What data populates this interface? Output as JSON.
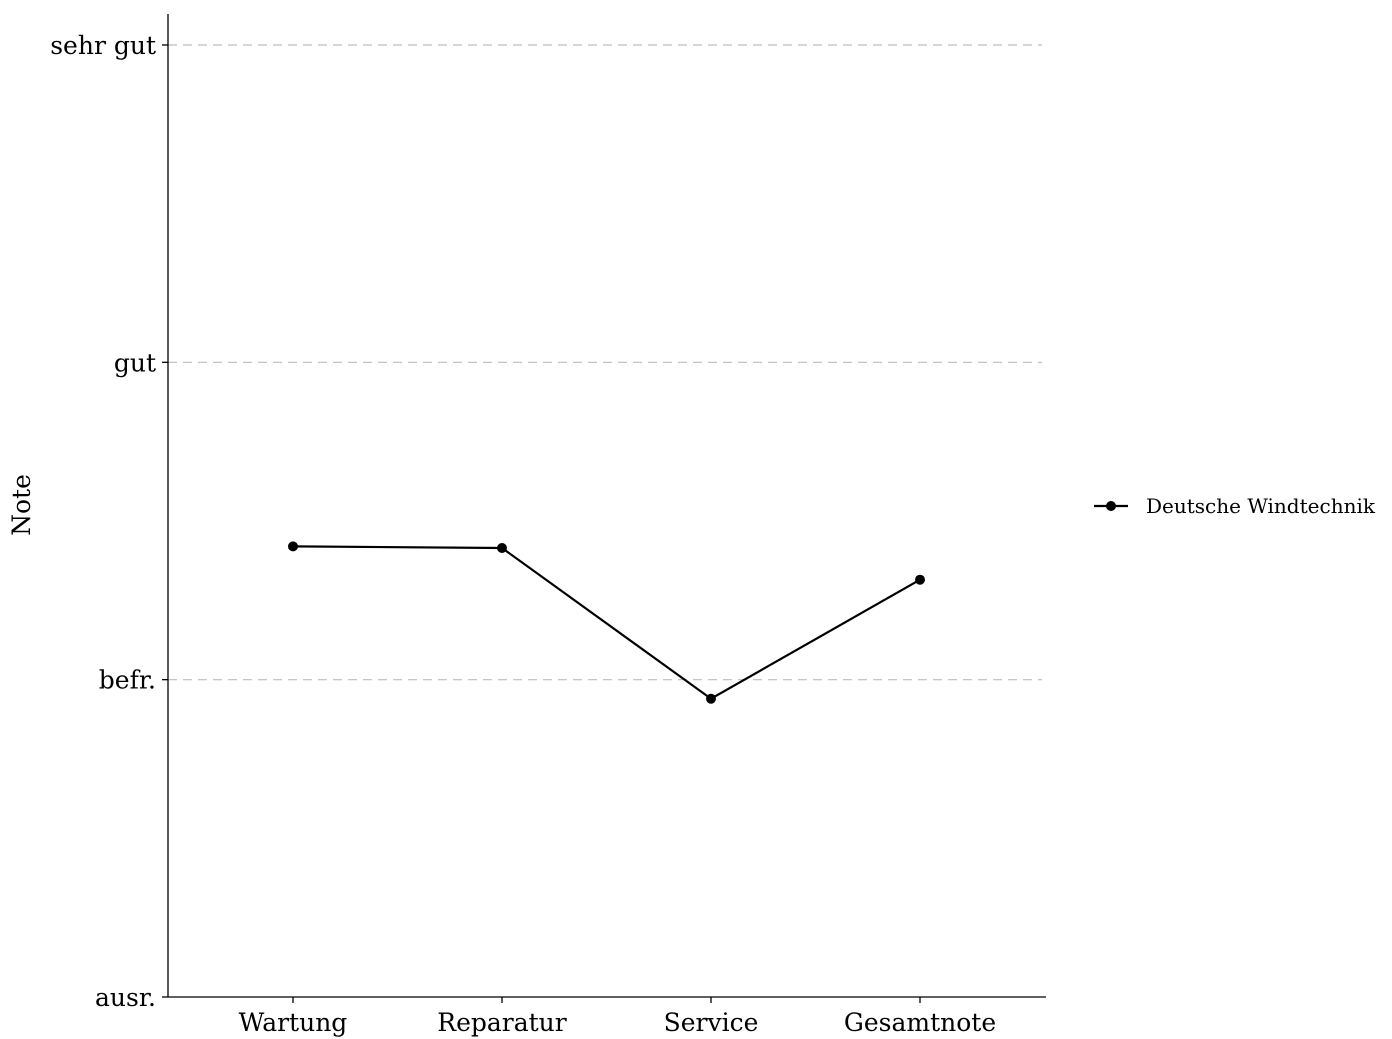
{
  "chart_data": {
    "type": "line",
    "title": "",
    "xlabel": "",
    "ylabel": "Note",
    "categories": [
      "Wartung",
      "Reparatur",
      "Service",
      "Gesamtnote"
    ],
    "y_ticks": [
      {
        "value": 1,
        "label": "sehr gut"
      },
      {
        "value": 2,
        "label": "gut"
      },
      {
        "value": 3,
        "label": "befr."
      },
      {
        "value": 4,
        "label": "ausr."
      }
    ],
    "ylim": [
      1,
      4
    ],
    "y_reversed": true,
    "grid": "horizontal-dashed",
    "legend_position": "right",
    "series": [
      {
        "name": "Deutsche Windtechnik",
        "color": "#000000",
        "values": [
          2.58,
          2.585,
          3.06,
          2.685
        ]
      }
    ]
  }
}
